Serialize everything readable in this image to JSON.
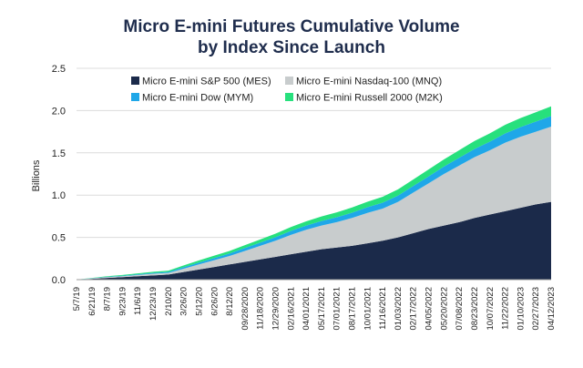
{
  "chart_data": {
    "type": "area",
    "stacked": true,
    "title": "Micro E-mini Futures Cumulative Volume by Index Since Launch",
    "title_lines": [
      "Micro E-mini Futures Cumulative Volume",
      "by Index Since Launch"
    ],
    "xlabel": "",
    "ylabel": "Billions",
    "ylim": [
      0,
      2.5
    ],
    "yticks": [
      "0.0",
      "0.5",
      "1.0",
      "1.5",
      "2.0",
      "2.5"
    ],
    "grid": "horizontal",
    "legend_position": "top-right",
    "x": [
      "5/7/19",
      "6/21/19",
      "8/7/19",
      "9/23/19",
      "11/6/19",
      "12/23/19",
      "2/10/20",
      "3/26/20",
      "5/12/20",
      "6/26/20",
      "8/12/20",
      "09/28/2020",
      "11/18/2020",
      "12/29/2020",
      "02/16/2021",
      "04/01/2021",
      "05/17/2021",
      "07/01/2021",
      "08/17/2021",
      "10/01/2021",
      "11/16/2021",
      "01/03/2022",
      "02/17/2022",
      "04/05/2022",
      "05/20/2022",
      "07/08/2022",
      "08/23/2022",
      "10/07/2022",
      "11/22/2022",
      "01/10/2023",
      "02/27/2023",
      "04/12/2023"
    ],
    "series": [
      {
        "name": "Micro E-mini S&P 500 (MES)",
        "color": "#1b2a4a",
        "values": [
          0.0,
          0.01,
          0.02,
          0.03,
          0.04,
          0.05,
          0.06,
          0.09,
          0.12,
          0.15,
          0.18,
          0.21,
          0.24,
          0.27,
          0.3,
          0.33,
          0.36,
          0.38,
          0.4,
          0.43,
          0.46,
          0.5,
          0.55,
          0.6,
          0.64,
          0.68,
          0.73,
          0.77,
          0.81,
          0.85,
          0.89,
          0.92
        ]
      },
      {
        "name": "Micro E-mini Nasdaq-100 (MNQ)",
        "color": "#c8cccd",
        "values": [
          0.0,
          0.005,
          0.01,
          0.01,
          0.015,
          0.02,
          0.02,
          0.04,
          0.06,
          0.08,
          0.1,
          0.13,
          0.16,
          0.19,
          0.23,
          0.26,
          0.28,
          0.3,
          0.33,
          0.36,
          0.38,
          0.42,
          0.48,
          0.54,
          0.61,
          0.67,
          0.72,
          0.76,
          0.81,
          0.84,
          0.86,
          0.89
        ]
      },
      {
        "name": "Micro E-mini Dow (MYM)",
        "color": "#1fa7e8",
        "values": [
          0.0,
          0.002,
          0.004,
          0.006,
          0.008,
          0.01,
          0.012,
          0.018,
          0.022,
          0.026,
          0.03,
          0.034,
          0.038,
          0.042,
          0.046,
          0.05,
          0.054,
          0.058,
          0.062,
          0.066,
          0.07,
          0.074,
          0.078,
          0.082,
          0.087,
          0.092,
          0.097,
          0.103,
          0.11,
          0.115,
          0.12,
          0.125
        ]
      },
      {
        "name": "Micro E-mini Russell 2000 (M2K)",
        "color": "#27e07d",
        "values": [
          0.0,
          0.003,
          0.006,
          0.009,
          0.011,
          0.013,
          0.015,
          0.02,
          0.025,
          0.028,
          0.03,
          0.034,
          0.038,
          0.042,
          0.046,
          0.05,
          0.054,
          0.058,
          0.062,
          0.066,
          0.07,
          0.074,
          0.078,
          0.082,
          0.086,
          0.09,
          0.094,
          0.098,
          0.102,
          0.106,
          0.11,
          0.115
        ]
      }
    ]
  }
}
